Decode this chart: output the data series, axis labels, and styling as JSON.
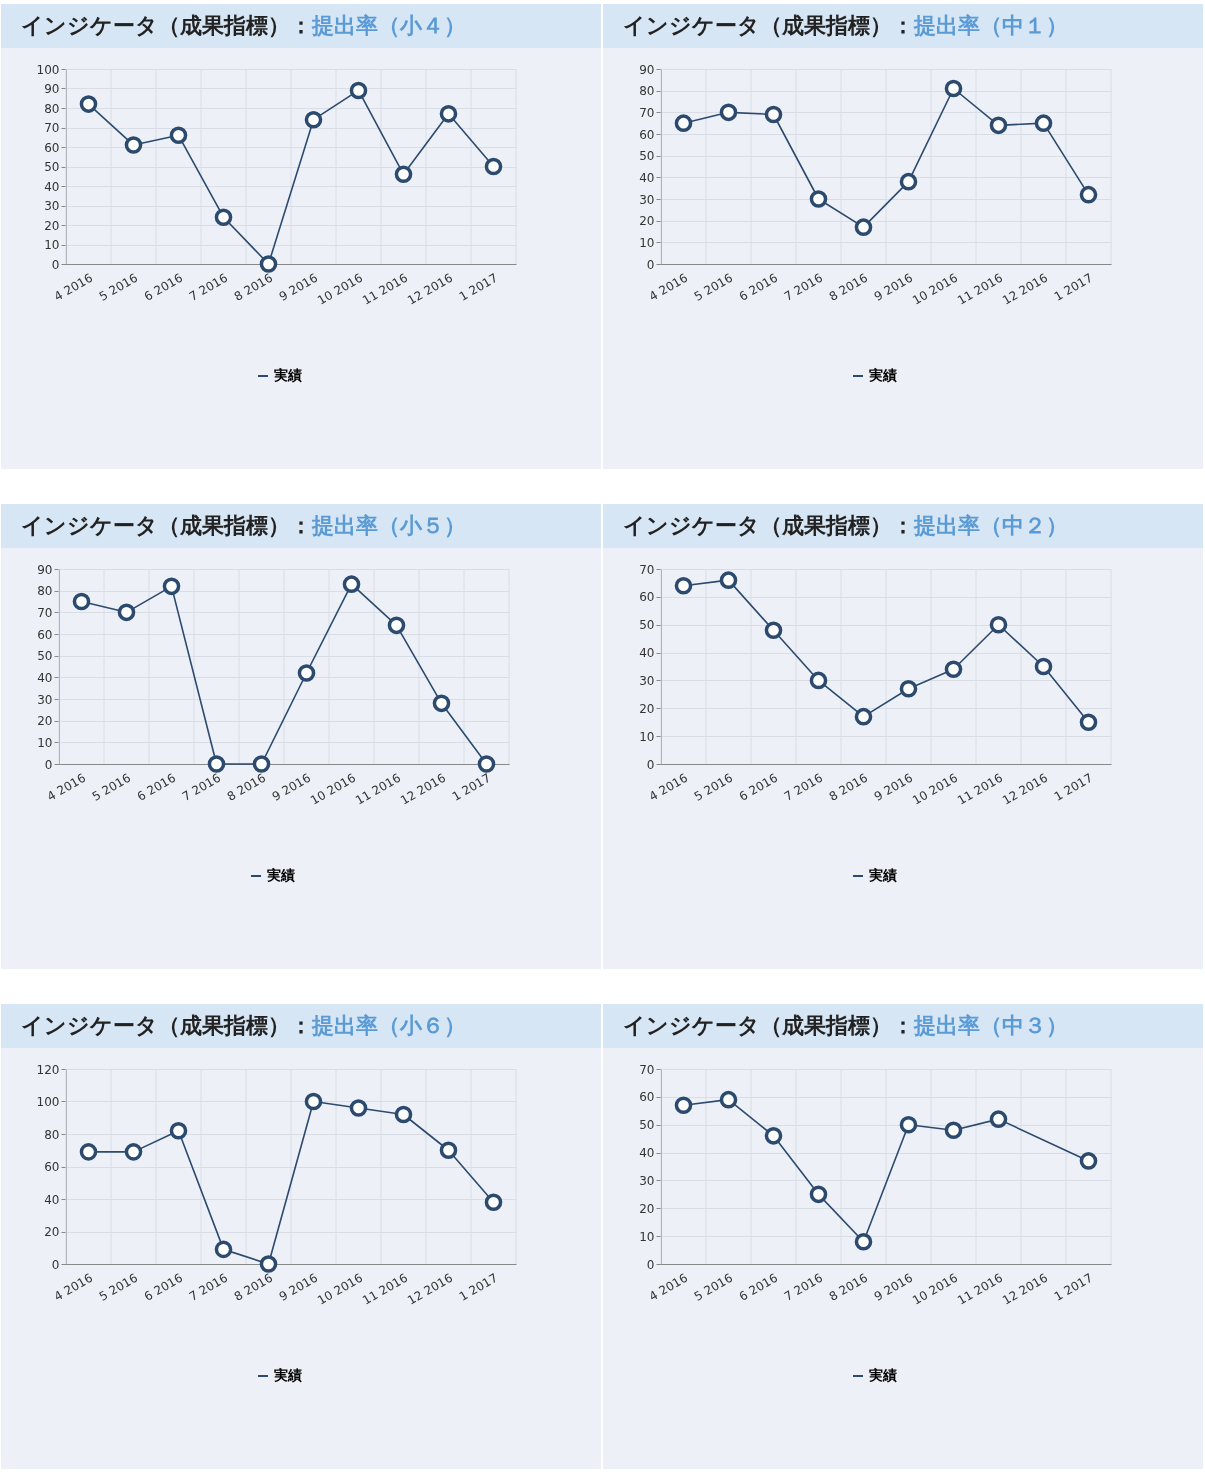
{
  "chart_data": [
    {
      "type": "line",
      "title": "インジケータ（成果指標）：",
      "subtitle": "提出率（小４）",
      "categories": [
        "4 2016",
        "5 2016",
        "6 2016",
        "7 2016",
        "8 2016",
        "9 2016",
        "10 2016",
        "11 2016",
        "12 2016",
        "1 2017"
      ],
      "series": [
        {
          "name": "実績",
          "color": "#2b4a6e",
          "values": [
            82,
            61,
            66,
            24,
            0,
            74,
            89,
            46,
            77,
            50
          ]
        }
      ],
      "ylim": [
        0,
        100
      ],
      "yticks": [
        0,
        10,
        20,
        30,
        40,
        50,
        60,
        70,
        80,
        90,
        100
      ],
      "grid": true,
      "legend": "bottom",
      "marker": "circle",
      "line_style": "solid"
    },
    {
      "type": "line",
      "title": "インジケータ（成果指標）：",
      "subtitle": "提出率（中１）",
      "categories": [
        "4 2016",
        "5 2016",
        "6 2016",
        "7 2016",
        "8 2016",
        "9 2016",
        "10 2016",
        "11 2016",
        "12 2016",
        "1 2017"
      ],
      "series": [
        {
          "name": "実績",
          "color": "#2b4a6e",
          "values": [
            65,
            70,
            69,
            30,
            17,
            38,
            81,
            64,
            65,
            32
          ]
        }
      ],
      "ylim": [
        0,
        90
      ],
      "yticks": [
        0,
        10,
        20,
        30,
        40,
        50,
        60,
        70,
        80,
        90
      ],
      "grid": true,
      "legend": "bottom",
      "marker": "circle",
      "line_style": "solid"
    },
    {
      "type": "line",
      "title": "インジケータ（成果指標）：",
      "subtitle": "提出率（小５）",
      "categories": [
        "4 2016",
        "5 2016",
        "6 2016",
        "7 2016",
        "8 2016",
        "9 2016",
        "10 2016",
        "11 2016",
        "12 2016",
        "1 2017"
      ],
      "series": [
        {
          "name": "実績",
          "color": "#2b4a6e",
          "values": [
            75,
            70,
            82,
            0,
            0,
            42,
            83,
            64,
            28,
            0
          ]
        }
      ],
      "ylim": [
        0,
        90
      ],
      "yticks": [
        0,
        10,
        20,
        30,
        40,
        50,
        60,
        70,
        80,
        90
      ],
      "grid": true,
      "legend": "bottom",
      "marker": "circle",
      "line_style": "solid"
    },
    {
      "type": "line",
      "title": "インジケータ（成果指標）：",
      "subtitle": "提出率（中２）",
      "categories": [
        "4 2016",
        "5 2016",
        "6 2016",
        "7 2016",
        "8 2016",
        "9 2016",
        "10 2016",
        "11 2016",
        "12 2016",
        "1 2017"
      ],
      "series": [
        {
          "name": "実績",
          "color": "#2b4a6e",
          "values": [
            64,
            66,
            48,
            30,
            17,
            27,
            34,
            50,
            35,
            15
          ]
        }
      ],
      "ylim": [
        0,
        70
      ],
      "yticks": [
        0,
        10,
        20,
        30,
        40,
        50,
        60,
        70
      ],
      "grid": true,
      "legend": "bottom",
      "marker": "circle",
      "line_style": "solid"
    },
    {
      "type": "line",
      "title": "インジケータ（成果指標）：",
      "subtitle": "提出率（小６）",
      "categories": [
        "4 2016",
        "5 2016",
        "6 2016",
        "7 2016",
        "8 2016",
        "9 2016",
        "10 2016",
        "11 2016",
        "12 2016",
        "1 2017"
      ],
      "series": [
        {
          "name": "実績",
          "color": "#2b4a6e",
          "values": [
            69,
            69,
            82,
            9,
            0,
            100,
            96,
            92,
            70,
            38
          ]
        }
      ],
      "ylim": [
        0,
        120
      ],
      "yticks": [
        0,
        20,
        40,
        60,
        80,
        100,
        120
      ],
      "grid": true,
      "legend": "bottom",
      "marker": "circle",
      "line_style": "solid"
    },
    {
      "type": "line",
      "title": "インジケータ（成果指標）：",
      "subtitle": "提出率（中３）",
      "categories": [
        "4 2016",
        "5 2016",
        "6 2016",
        "7 2016",
        "8 2016",
        "9 2016",
        "10 2016",
        "11 2016",
        "12 2016",
        "1 2017"
      ],
      "series": [
        {
          "name": "実績",
          "color": "#2b4a6e",
          "values": [
            57,
            59,
            46,
            25,
            8,
            50,
            48,
            52,
            null,
            37
          ]
        }
      ],
      "ylim": [
        0,
        70
      ],
      "yticks": [
        0,
        10,
        20,
        30,
        40,
        50,
        60,
        70
      ],
      "grid": true,
      "legend": "bottom",
      "marker": "circle",
      "line_style": "solid"
    }
  ]
}
